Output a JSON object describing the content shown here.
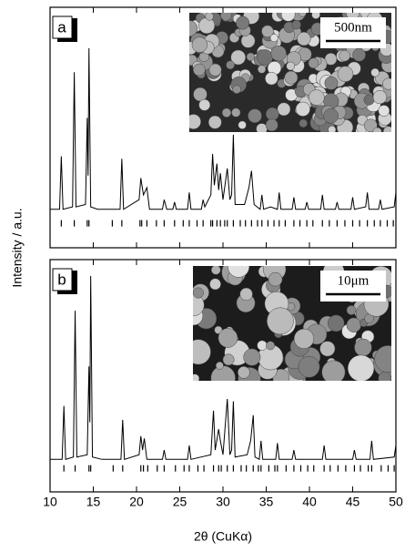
{
  "chart_data": [
    {
      "type": "line",
      "panel_label": "a",
      "inset_scale": "500nm",
      "ylabel": "Intensity / a.u.",
      "xlim": [
        10,
        50
      ],
      "xticks": [
        10,
        15,
        20,
        25,
        30,
        35,
        40,
        45,
        50
      ],
      "ylim": [
        0,
        100
      ],
      "series": [
        {
          "color": "#000000",
          "x": [
            10,
            11.1,
            11.3,
            11.5,
            12.6,
            12.8,
            13.0,
            14.1,
            14.3,
            14.4,
            14.5,
            14.7,
            15.5,
            18.1,
            18.3,
            18.5,
            20.3,
            20.5,
            20.8,
            21.2,
            21.5,
            23,
            23.2,
            23.5,
            24.2,
            24.4,
            24.6,
            25.9,
            26.1,
            26.3,
            27.5,
            27.7,
            27.9,
            28.6,
            28.8,
            29.0,
            29.3,
            29.5,
            29.7,
            30.0,
            30.5,
            30.8,
            31.0,
            31.2,
            31.4,
            32.5,
            33.0,
            33.3,
            33.6,
            34.3,
            34.5,
            34.7,
            35.5,
            36.3,
            36.5,
            36.7,
            38,
            38.2,
            38.4,
            39.5,
            39.7,
            39.9,
            41.3,
            41.5,
            41.7,
            43,
            43.2,
            43.4,
            44.8,
            45,
            45.2,
            46.5,
            46.7,
            46.9,
            48,
            48.2,
            48.4,
            49.8,
            50
          ],
          "values": [
            16,
            16,
            38,
            16,
            17,
            73,
            17,
            18,
            54,
            30,
            83,
            17,
            16,
            16,
            37,
            16,
            20,
            29,
            22,
            25,
            16,
            16,
            20,
            16,
            16,
            19,
            16,
            16,
            23,
            16,
            16,
            20,
            17,
            22,
            39,
            26,
            35,
            24,
            31,
            20,
            33,
            20,
            22,
            47,
            18,
            18,
            25,
            32,
            18,
            16,
            22,
            16,
            17,
            16,
            23,
            16,
            16,
            21,
            16,
            16,
            19,
            16,
            16,
            22,
            16,
            16,
            19,
            16,
            16,
            21,
            16,
            17,
            23,
            16,
            16,
            20,
            16,
            17,
            23
          ]
        }
      ],
      "reflections": [
        11.3,
        12.8,
        14.3,
        14.5,
        17.2,
        18.3,
        20.4,
        20.6,
        21.2,
        22.3,
        23.2,
        24.4,
        25.4,
        26.1,
        27.0,
        27.7,
        28.6,
        28.8,
        29.3,
        29.7,
        30.2,
        30.5,
        31.2,
        32.0,
        32.6,
        33.3,
        34.0,
        34.5,
        35.2,
        35.9,
        36.5,
        37.2,
        38.2,
        38.9,
        39.7,
        40.4,
        41.5,
        42.3,
        43.2,
        44.1,
        45.0,
        45.8,
        46.7,
        47.5,
        48.2,
        49.0,
        49.7
      ]
    },
    {
      "type": "line",
      "panel_label": "b",
      "inset_scale": "10μm",
      "xlabel": "2θ (CuKα)",
      "xlim": [
        10,
        50
      ],
      "xticks": [
        10,
        15,
        20,
        25,
        30,
        35,
        40,
        45,
        50
      ],
      "ylim": [
        0,
        100
      ],
      "series": [
        {
          "color": "#000000",
          "x": [
            10,
            11.4,
            11.6,
            11.8,
            12.7,
            12.9,
            13.1,
            14.3,
            14.5,
            14.6,
            14.7,
            14.9,
            16,
            18.2,
            18.4,
            18.6,
            20.3,
            20.5,
            20.7,
            20.9,
            21.2,
            23,
            23.2,
            23.4,
            25.9,
            26.1,
            26.3,
            28.6,
            28.9,
            29.1,
            29.5,
            29.7,
            30.0,
            30.5,
            30.8,
            31.0,
            31.2,
            31.4,
            32.8,
            33.2,
            33.5,
            33.7,
            34.2,
            34.4,
            34.6,
            36.1,
            36.3,
            36.5,
            38,
            38.2,
            38.4,
            41.5,
            41.7,
            41.9,
            45,
            45.2,
            45.4,
            47,
            47.2,
            47.4,
            49.8,
            50
          ],
          "values": [
            14,
            14,
            37,
            14,
            15,
            78,
            15,
            16,
            54,
            30,
            93,
            15,
            14,
            14,
            31,
            14,
            16,
            24,
            18,
            23,
            14,
            14,
            18,
            14,
            14,
            20,
            14,
            16,
            35,
            18,
            27,
            22,
            16,
            40,
            16,
            18,
            39,
            15,
            16,
            22,
            33,
            15,
            14,
            22,
            14,
            14,
            21,
            14,
            14,
            18,
            14,
            14,
            20,
            14,
            14,
            18,
            14,
            14,
            22,
            14,
            15,
            20
          ]
        }
      ],
      "reflections": [
        11.6,
        12.9,
        14.5,
        14.7,
        17.3,
        18.4,
        20.5,
        20.8,
        21.3,
        22.4,
        23.2,
        24.5,
        25.5,
        26.1,
        27.1,
        27.8,
        28.9,
        29.5,
        29.8,
        30.5,
        31.2,
        32.1,
        32.7,
        33.5,
        34.1,
        34.4,
        35.3,
        36.0,
        36.3,
        37.3,
        38.2,
        39.0,
        39.8,
        40.5,
        41.7,
        42.4,
        43.3,
        44.2,
        45.2,
        45.9,
        46.8,
        47.2,
        48.3,
        49.1,
        49.8
      ]
    }
  ]
}
